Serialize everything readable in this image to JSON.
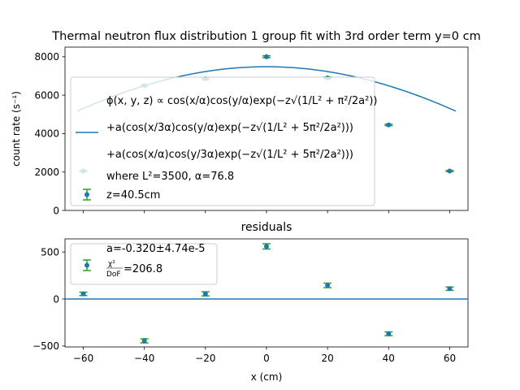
{
  "chart_data": [
    {
      "type": "scatter",
      "title": "Thermal neutron flux distribution 1 group fit with 3rd order term y=0 cm",
      "ylabel": "count rate (s⁻¹)",
      "xlim": [
        -66,
        66
      ],
      "ylim": [
        0,
        8500
      ],
      "yticks": [
        0,
        2000,
        4000,
        6000,
        8000
      ],
      "xticks": [
        -60,
        -40,
        -20,
        0,
        20,
        40,
        60
      ],
      "grid": false,
      "legend_position": "lower-left",
      "series": [
        {
          "name": "z=40.5cm",
          "kind": "errorbar",
          "color": "#1f77b4",
          "errcolor": "#2ca02c",
          "x": [
            -60,
            -40,
            -20,
            0,
            20,
            40,
            60
          ],
          "y": [
            2050,
            6500,
            6850,
            8000,
            6900,
            4450,
            2050
          ],
          "yerr": [
            25,
            40,
            45,
            50,
            45,
            35,
            25
          ]
        },
        {
          "kind": "fit-line",
          "color": "#1f77b4",
          "amplitude": 7480,
          "alpha": 76.8
        }
      ],
      "legend": {
        "fit_line1": "ϕ(x, y, z) ∝ cos(x/α)cos(y/α)exp(−z√(1/L² + π²/2a²))",
        "fit_line2": "+a(cos(x/3α)cos(y/α)exp(−z√(1/L² + 5π²/2a²)))",
        "fit_line3": "+a(cos(x/α)cos(y/3α)exp(−z√(1/L² + 5π²/2a²)))",
        "fit_line4": "where L²=3500, α=76.8",
        "points_label": "z=40.5cm"
      }
    },
    {
      "type": "scatter",
      "title": "residuals",
      "xlabel": "x (cm)",
      "xlim": [
        -66,
        66
      ],
      "ylim": [
        -510,
        640
      ],
      "yticks": [
        -500,
        0,
        500
      ],
      "xticks": [
        -60,
        -40,
        -20,
        0,
        20,
        40,
        60
      ],
      "grid": false,
      "legend_position": "upper-left",
      "series": [
        {
          "kind": "errorbar",
          "color": "#1f77b4",
          "errcolor": "#2ca02c",
          "x": [
            -60,
            -40,
            -20,
            0,
            20,
            40,
            60
          ],
          "y": [
            55,
            -445,
            55,
            560,
            145,
            -370,
            110
          ],
          "yerr": [
            18,
            22,
            22,
            28,
            24,
            20,
            18
          ]
        }
      ],
      "zero_line": 0,
      "legend": {
        "line1": "a=-0.320±4.74e-5",
        "chi_num": "χ²",
        "chi_den": "DoF",
        "chi_value": "=206.8"
      }
    }
  ]
}
